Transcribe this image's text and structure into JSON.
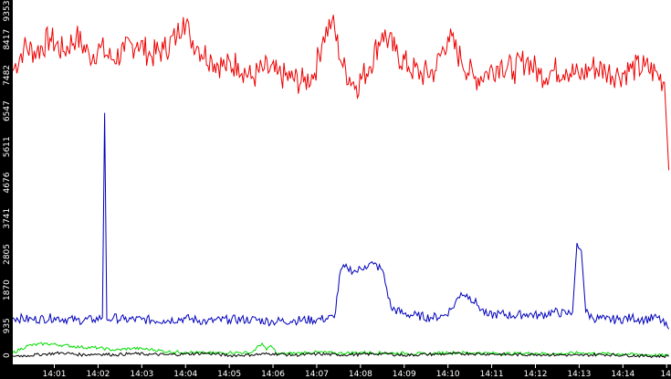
{
  "chart_data": {
    "type": "line",
    "title": "",
    "xlabel": "",
    "ylabel": "",
    "ylim": [
      0,
      9353
    ],
    "y_ticks": [
      "0",
      "935",
      "1870",
      "2805",
      "3741",
      "4676",
      "5611",
      "6547",
      "7482",
      "8417",
      "9353"
    ],
    "x_ticks": [
      "14:01",
      "14:02",
      "14:03",
      "14:04",
      "14:05",
      "14:06",
      "14:07",
      "14:08",
      "14:09",
      "14:10",
      "14:11",
      "14:12",
      "14:13",
      "14:14",
      "14"
    ],
    "x_tick_minutes": [
      1,
      2,
      3,
      4,
      5,
      6,
      7,
      8,
      9,
      10,
      11,
      12,
      13,
      14,
      15
    ],
    "xlim_minutes": [
      0.05,
      15.1
    ],
    "grid": false,
    "legend": "none",
    "background": "#ffffff",
    "axis_background": "#000000",
    "label_color": "#ffffff",
    "series": [
      {
        "color": "#ee0000",
        "x": [
          0.05,
          0.3,
          0.6,
          0.9,
          1.2,
          1.5,
          1.8,
          2.05,
          2.3,
          2.6,
          2.9,
          3.2,
          3.5,
          3.8,
          3.95,
          4.1,
          4.3,
          4.6,
          4.9,
          5.2,
          5.5,
          5.8,
          6.1,
          6.4,
          6.7,
          6.95,
          7.15,
          7.35,
          7.6,
          7.9,
          8.2,
          8.5,
          8.8,
          9.1,
          9.4,
          9.7,
          10.0,
          10.3,
          10.6,
          10.9,
          11.2,
          11.5,
          11.8,
          12.1,
          12.4,
          12.7,
          13.0,
          13.3,
          13.6,
          13.9,
          14.2,
          14.5,
          14.8,
          14.95,
          15.05
        ],
        "y": [
          7600,
          8200,
          8100,
          8450,
          8100,
          8500,
          8000,
          8200,
          7900,
          8100,
          8350,
          8000,
          8150,
          8500,
          9000,
          8500,
          8200,
          7900,
          7700,
          7800,
          7400,
          7650,
          7500,
          7400,
          7300,
          7550,
          8500,
          8900,
          7700,
          7200,
          7700,
          8600,
          8100,
          7700,
          7500,
          7600,
          8500,
          7900,
          7400,
          7550,
          7800,
          7600,
          7900,
          7500,
          7600,
          7650,
          7450,
          7700,
          7600,
          7500,
          7650,
          7700,
          7500,
          7300,
          5000
        ]
      },
      {
        "color": "#0000bb",
        "x": [
          0.05,
          0.5,
          1.0,
          1.5,
          1.9,
          2.1,
          2.15,
          2.2,
          2.25,
          2.35,
          2.6,
          3.0,
          3.5,
          4.0,
          4.5,
          5.0,
          5.5,
          6.0,
          6.5,
          7.0,
          7.4,
          7.55,
          7.7,
          7.9,
          8.1,
          8.3,
          8.5,
          8.7,
          9.0,
          9.3,
          9.6,
          9.9,
          10.1,
          10.3,
          10.5,
          10.7,
          10.9,
          11.2,
          11.5,
          11.8,
          12.1,
          12.4,
          12.7,
          12.85,
          12.95,
          13.05,
          13.15,
          13.3,
          13.6,
          13.9,
          14.2,
          14.5,
          14.8,
          15.05
        ],
        "y": [
          1150,
          1100,
          1150,
          1080,
          1100,
          1150,
          6500,
          1100,
          1100,
          1150,
          1100,
          1100,
          1080,
          1130,
          1050,
          1100,
          1100,
          1050,
          1080,
          1100,
          1150,
          2400,
          2450,
          2350,
          2500,
          2550,
          2400,
          1400,
          1250,
          1200,
          1150,
          1200,
          1400,
          1800,
          1700,
          1450,
          1200,
          1250,
          1200,
          1250,
          1200,
          1300,
          1250,
          1300,
          3100,
          2900,
          1300,
          1150,
          1100,
          1100,
          1150,
          1100,
          1150,
          850
        ]
      },
      {
        "color": "#00dd00",
        "x": [
          0.05,
          0.4,
          0.8,
          1.2,
          1.6,
          2.0,
          2.4,
          2.8,
          3.2,
          3.6,
          4.0,
          4.5,
          5.0,
          5.5,
          5.75,
          5.85,
          5.95,
          6.1,
          6.5,
          7.0,
          7.5,
          8.0,
          8.5,
          9.0,
          9.5,
          10.0,
          10.5,
          11.0,
          11.5,
          12.0,
          12.5,
          13.0,
          13.5,
          14.0,
          14.5,
          15.05
        ],
        "y": [
          230,
          420,
          470,
          430,
          380,
          360,
          300,
          350,
          320,
          260,
          250,
          220,
          240,
          230,
          480,
          300,
          420,
          200,
          220,
          250,
          220,
          240,
          230,
          220,
          200,
          240,
          230,
          220,
          210,
          220,
          200,
          230,
          210,
          200,
          180,
          160
        ]
      },
      {
        "color": "#000000",
        "x": [
          0.05,
          0.4,
          0.8,
          1.2,
          1.6,
          2.0,
          2.4,
          2.8,
          3.2,
          3.6,
          4.0,
          4.5,
          5.0,
          5.5,
          6.0,
          6.5,
          7.0,
          7.5,
          8.0,
          8.5,
          9.0,
          9.5,
          10.0,
          10.5,
          11.0,
          11.5,
          12.0,
          12.5,
          13.0,
          13.5,
          14.0,
          14.5,
          15.05
        ],
        "y": [
          150,
          160,
          200,
          230,
          180,
          200,
          180,
          210,
          190,
          180,
          200,
          220,
          160,
          180,
          210,
          170,
          200,
          180,
          190,
          210,
          170,
          190,
          200,
          210,
          200,
          180,
          190,
          180,
          160,
          190,
          170,
          150,
          140
        ]
      }
    ]
  }
}
